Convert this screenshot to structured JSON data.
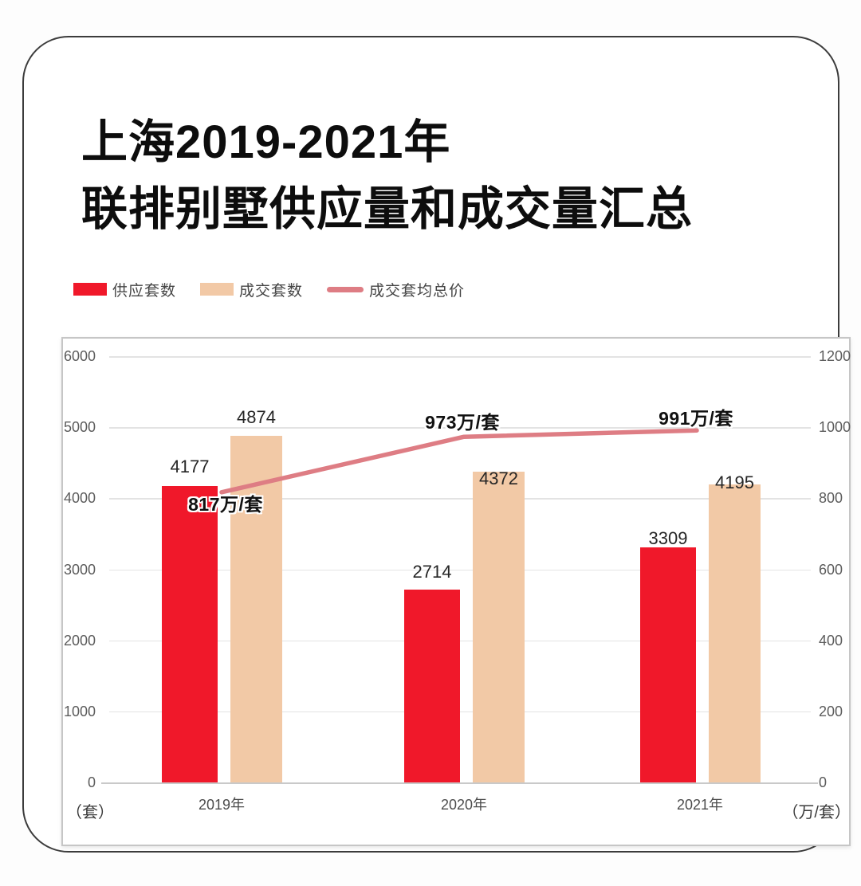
{
  "title": {
    "line1": "上海2019-2021年",
    "line2": "联排别墅供应量和成交量汇总"
  },
  "legend": {
    "items": [
      {
        "label": "供应套数",
        "swatch": "rect",
        "color": "#f0182a"
      },
      {
        "label": "成交套数",
        "swatch": "rect",
        "color": "#f2c9a6"
      },
      {
        "label": "成交套均总价",
        "swatch": "line",
        "color": "#de7d84"
      }
    ]
  },
  "chart_data": {
    "type": "bar",
    "categories": [
      "2019年",
      "2020年",
      "2021年"
    ],
    "series": [
      {
        "name": "供应套数",
        "chart_type": "bar",
        "axis": "left",
        "color": "#f0182a",
        "values": [
          4177,
          2714,
          3309
        ]
      },
      {
        "name": "成交套数",
        "chart_type": "bar",
        "axis": "left",
        "color": "#f2c9a6",
        "values": [
          4874,
          4372,
          4195
        ]
      },
      {
        "name": "成交套均总价",
        "chart_type": "line",
        "axis": "right",
        "color": "#de7d84",
        "values": [
          817,
          973,
          991
        ],
        "point_labels": [
          "817万/套",
          "973万/套",
          "991万/套"
        ]
      }
    ],
    "left_axis": {
      "unit": "（套）",
      "min": 0,
      "max": 6000,
      "ticks": [
        0,
        1000,
        2000,
        3000,
        4000,
        5000,
        6000
      ]
    },
    "right_axis": {
      "unit": "（万/套）",
      "min": 0,
      "max": 1200,
      "ticks": [
        0,
        200,
        400,
        600,
        800,
        1000,
        1200
      ]
    },
    "grid": true,
    "legend_position": "top-left",
    "colors": {
      "supply_bar": "#f0182a",
      "deal_bar": "#f2c9a6",
      "price_line": "#de7d84"
    }
  }
}
